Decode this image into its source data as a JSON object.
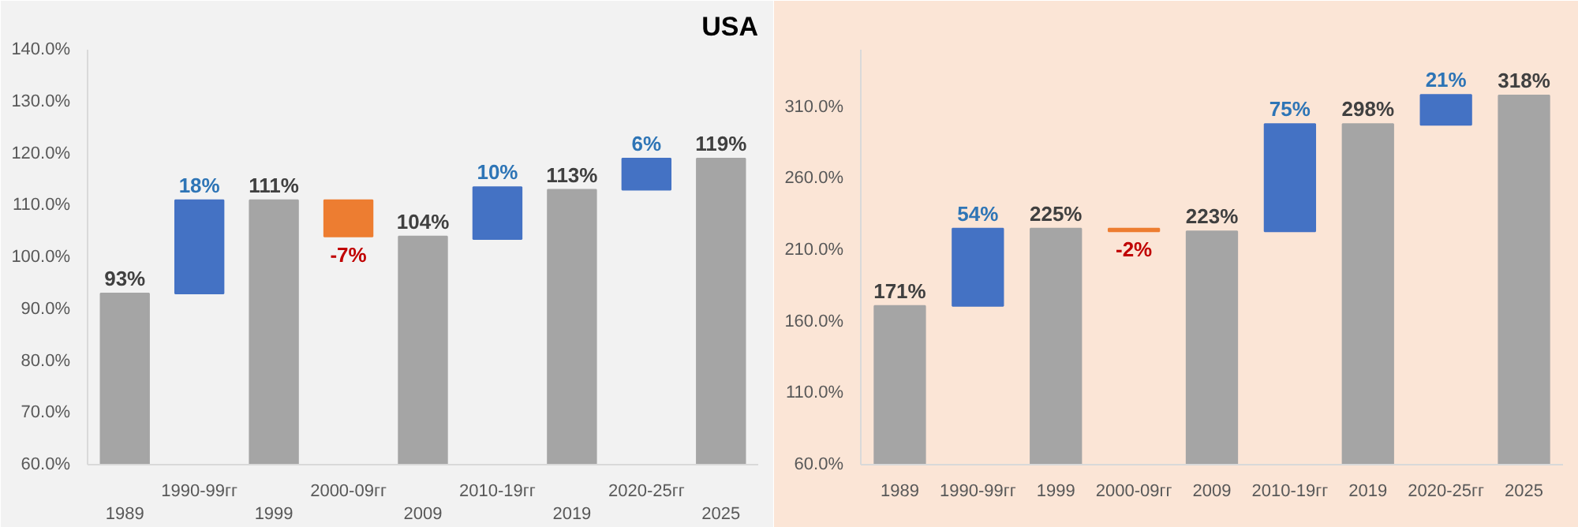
{
  "chart_data": [
    {
      "type": "bar",
      "title": "USA",
      "categories": [
        "1989",
        "1990-99гг",
        "1999",
        "2000-09гг",
        "2009",
        "2010-19гг",
        "2019",
        "2020-25гг",
        "2025"
      ],
      "values": [
        93,
        18,
        111,
        -7,
        104,
        10,
        113,
        6,
        119
      ],
      "base": [
        null,
        93,
        null,
        111,
        null,
        103.5,
        null,
        113,
        null
      ],
      "colors": [
        "#a5a5a5",
        "#4472c4",
        "#a5a5a5",
        "#ed7d31",
        "#a5a5a5",
        "#4472c4",
        "#a5a5a5",
        "#4472c4",
        "#a5a5a5"
      ],
      "value_labels": [
        "93%",
        "18%",
        "111%",
        "-7%",
        "104%",
        "10%",
        "113%",
        "6%",
        "119%"
      ],
      "ylim": [
        60,
        140
      ],
      "yticks": [
        {
          "value": 60,
          "label": "60.0%"
        },
        {
          "value": 70,
          "label": "70.0%"
        },
        {
          "value": 80,
          "label": "80.0%"
        },
        {
          "value": 90,
          "label": "90.0%"
        },
        {
          "value": 100,
          "label": "100.0%"
        },
        {
          "value": 110,
          "label": "110.0%"
        },
        {
          "value": 120,
          "label": "120.0%"
        },
        {
          "value": 130,
          "label": "130.0%"
        },
        {
          "value": 140,
          "label": "140.0%"
        }
      ],
      "grid": false
    },
    {
      "type": "bar",
      "categories": [
        "1989",
        "1990-99гг",
        "1999",
        "2000-09гг",
        "2009",
        "2010-19гг",
        "2019",
        "2020-25гг",
        "2025"
      ],
      "values": [
        171,
        54,
        225,
        -2,
        223,
        75,
        298,
        21,
        318
      ],
      "base": [
        null,
        171,
        null,
        225,
        null,
        223,
        null,
        297.5,
        null
      ],
      "colors": [
        "#a5a5a5",
        "#4472c4",
        "#a5a5a5",
        "#ed7d31",
        "#a5a5a5",
        "#4472c4",
        "#a5a5a5",
        "#4472c4",
        "#a5a5a5"
      ],
      "value_labels": [
        "171%",
        "54%",
        "225%",
        "-2%",
        "223%",
        "75%",
        "298%",
        "21%",
        "318%"
      ],
      "ylim": [
        60,
        350
      ],
      "yticks": [
        {
          "value": 60,
          "label": "60.0%"
        },
        {
          "value": 110,
          "label": "110.0%"
        },
        {
          "value": 160,
          "label": "160.0%"
        },
        {
          "value": 210,
          "label": "210.0%"
        },
        {
          "value": 260,
          "label": "260.0%"
        },
        {
          "value": 310,
          "label": "310.0%"
        }
      ],
      "grid": false
    }
  ]
}
